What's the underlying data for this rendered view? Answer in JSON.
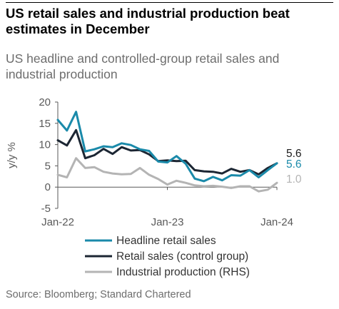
{
  "title": "US retail sales and industrial production beat estimates in December",
  "subtitle": "US headline and controlled-group retail sales and industrial production",
  "source": "Source: Bloomberg; Standard Chartered",
  "colors": {
    "headline": "#1a8aaa",
    "control": "#1c2633",
    "industrial": "#b4b4b4",
    "axis_text": "#595959",
    "gridline": "#d9d9d9"
  },
  "chart_data": {
    "type": "line",
    "x_start": "Jan-22",
    "x_end": "Jan-24",
    "x_ticks": [
      "Jan-22",
      "Jan-23",
      "Jan-24"
    ],
    "ylabel": "y/y %",
    "ylim": [
      -5,
      20
    ],
    "y_ticks": [
      "20",
      "15",
      "10",
      "5",
      "0",
      "-5"
    ],
    "grid": false,
    "legend_position": "bottom",
    "series": [
      {
        "name": "Headline retail sales",
        "color_key": "headline",
        "end_label": "5.6",
        "values": [
          15.8,
          13.3,
          17.7,
          8.4,
          8.9,
          9.6,
          9.4,
          10.3,
          9.9,
          8.9,
          8.5,
          6.0,
          5.8,
          7.3,
          5.5,
          2.0,
          1.4,
          2.4,
          1.6,
          2.8,
          2.7,
          4.0,
          2.3,
          4.0,
          5.6
        ]
      },
      {
        "name": "Retail sales (control group)",
        "color_key": "control",
        "end_label": "5.6",
        "values": [
          11.0,
          9.8,
          13.4,
          6.8,
          7.5,
          9.0,
          7.8,
          9.4,
          8.6,
          8.7,
          7.7,
          6.1,
          6.3,
          6.1,
          6.2,
          4.0,
          3.7,
          3.6,
          3.2,
          4.3,
          3.6,
          4.0,
          3.0,
          4.5,
          5.6
        ]
      },
      {
        "name": "Industrial production (RHS)",
        "color_key": "industrial",
        "end_label": "1.0",
        "values": [
          2.9,
          2.3,
          6.8,
          4.5,
          4.7,
          3.6,
          3.2,
          3.0,
          3.1,
          4.5,
          2.9,
          1.9,
          0.6,
          1.5,
          1.0,
          0.4,
          0.2,
          0.3,
          0.1,
          -0.2,
          0.2,
          0.2,
          -1.0,
          -0.6,
          1.0
        ]
      }
    ]
  }
}
